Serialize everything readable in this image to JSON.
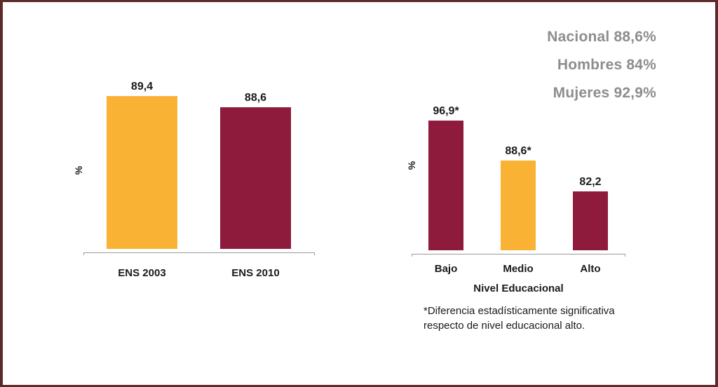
{
  "summary": {
    "lines": [
      "Nacional 88,6%",
      "Hombres 84%",
      "Mujeres 92,9%"
    ]
  },
  "chart_data": [
    {
      "type": "bar",
      "categories": [
        "ENS 2003",
        "ENS 2010"
      ],
      "values": [
        89.4,
        88.6
      ],
      "value_labels": [
        "89,4",
        "88,6"
      ],
      "colors": [
        "#f9b233",
        "#8e1b3b"
      ],
      "title": "",
      "xlabel": "",
      "ylabel": "%",
      "ylim": [
        79,
        93
      ],
      "grid": false,
      "legend": false
    },
    {
      "type": "bar",
      "categories": [
        "Bajo",
        "Medio",
        "Alto"
      ],
      "values": [
        96.9,
        88.6,
        82.2
      ],
      "value_labels": [
        "96,9*",
        "88,6*",
        "82,2"
      ],
      "colors": [
        "#8e1b3b",
        "#f9b233",
        "#8e1b3b"
      ],
      "title": "",
      "xlabel": "Nivel Educacional",
      "ylabel": "%",
      "ylim": [
        70,
        100
      ],
      "grid": false,
      "legend": false
    }
  ],
  "footnote": {
    "lines": [
      "*Diferencia estadísticamente significativa",
      "respecto de nivel educacional alto."
    ]
  },
  "colors": {
    "orange": "#f9b233",
    "maroon": "#8e1b3b",
    "border": "#5d2a28",
    "summary_text": "#8d8d8d",
    "axis": "#9a9a9a"
  }
}
